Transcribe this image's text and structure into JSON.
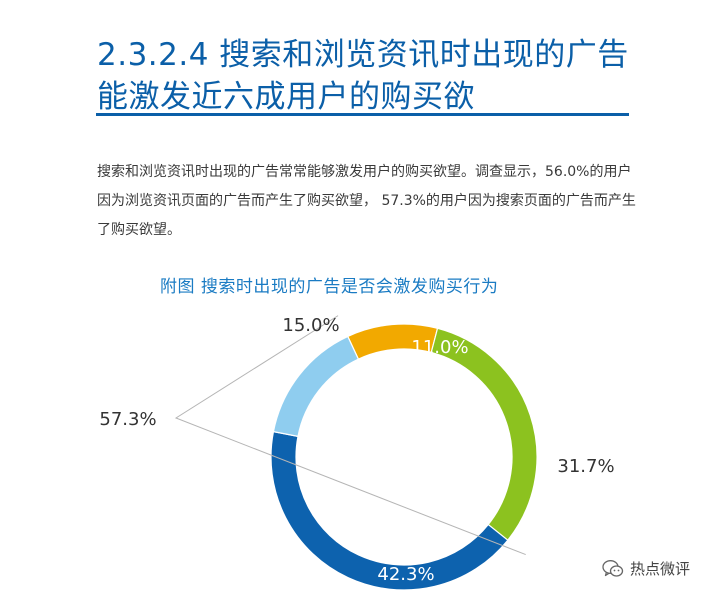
{
  "heading": {
    "line1": "2.3.2.4 搜索和浏览资讯时出现的广告",
    "line2": "能激发近六成用户的购买欲"
  },
  "intro": "搜索和浏览资讯时出现的广告常常能够激发用户的购买欲望。调查显示，56.0%的用户因为浏览资讯页面的广告而产生了购买欲望， 57.3%的用户因为搜索页面的广告而产生了购买欲望。",
  "chart_data": {
    "type": "pie",
    "title": "附图  搜索时出现的广告是否会激发购买行为",
    "slices": [
      {
        "label": "11.0%",
        "value": 11.0,
        "color": "#f2a900"
      },
      {
        "label": "31.7%",
        "value": 31.7,
        "color": "#8cc21f"
      },
      {
        "label": "42.3%",
        "value": 42.3,
        "color": "#0d62ae"
      },
      {
        "label": "15.0%",
        "value": 15.0,
        "color": "#8fcdef"
      }
    ],
    "combined_callout": {
      "label": "57.3%",
      "value": 57.3
    },
    "legend": "none"
  },
  "watermark": {
    "text": "热点微评",
    "icon": "wechat-icon"
  },
  "colors": {
    "heading": "#0b5fa8",
    "chart_title": "#1a7bc3",
    "callout_line": "#b5b5b5"
  }
}
